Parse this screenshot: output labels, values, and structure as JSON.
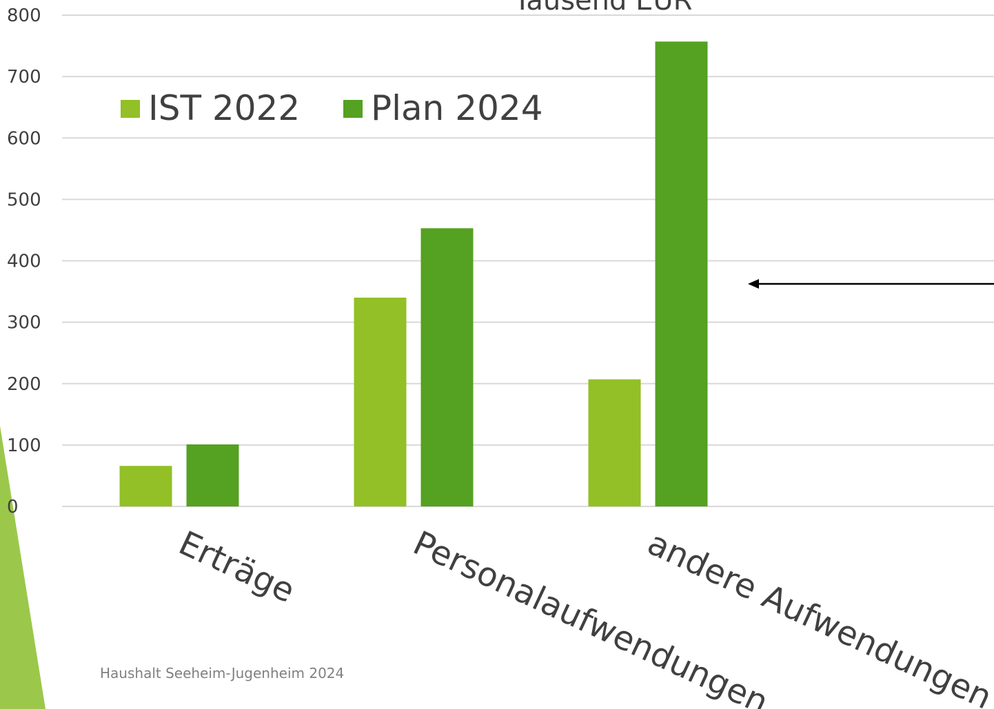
{
  "chart_data": {
    "type": "bar",
    "title": "Tausend EUR",
    "categories": [
      "Erträge",
      "Personalaufwendungen",
      "andere Aufwendungen"
    ],
    "series": [
      {
        "name": "IST 2022",
        "color": "#92c026",
        "values": [
          66,
          340,
          207
        ]
      },
      {
        "name": "Plan 2024",
        "color": "#55a122",
        "values": [
          101,
          453,
          757
        ]
      }
    ],
    "ylim": [
      0,
      800
    ],
    "yticks": [
      0,
      100,
      200,
      300,
      400,
      500,
      600,
      700,
      800
    ],
    "grid": true,
    "legend": "top-left"
  },
  "footer": "Haushalt Seeheim-Jugenheim 2024"
}
